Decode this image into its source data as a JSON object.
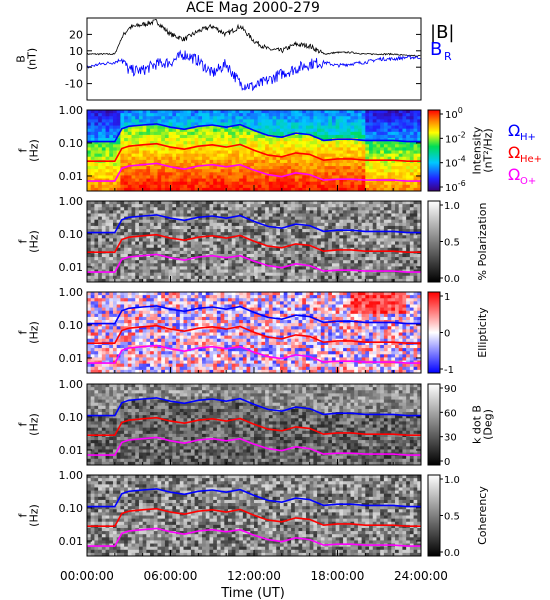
{
  "title": "ACE Mag 2000-279",
  "xlabel": "Time (UT)",
  "xticks": [
    "00:00:00",
    "06:00:00",
    "12:00:00",
    "18:00:00",
    "24:00:00"
  ],
  "colors": {
    "magnitude": "#000000",
    "radial": "#0000ff",
    "f_h": "#0000ff",
    "f_he": "#ff0000",
    "f_o": "#ff00ff"
  },
  "chart_data": [
    {
      "type": "line",
      "ylabel": "B\n(nT)",
      "xlim_hours": [
        0,
        24
      ],
      "ylim": [
        -20,
        30
      ],
      "yticks": [
        "20",
        "10",
        "0",
        "-10"
      ],
      "legend": [
        "|B|",
        "BR"
      ],
      "series": [
        {
          "name": "|B|",
          "x": [
            0,
            1,
            2,
            2.5,
            3,
            4,
            5,
            6,
            7,
            8,
            9,
            10,
            11,
            12,
            13,
            14,
            15,
            16,
            17,
            18,
            19,
            20,
            21,
            22,
            23,
            24
          ],
          "values": [
            8,
            8,
            8,
            18,
            24,
            26,
            28,
            20,
            17,
            22,
            25,
            20,
            25,
            16,
            11,
            10,
            14,
            13,
            8,
            9,
            9,
            8,
            8,
            8,
            7,
            7
          ]
        },
        {
          "name": "BR",
          "x": [
            0,
            1,
            2,
            2.5,
            3,
            4,
            5,
            6,
            7,
            8,
            9,
            10,
            11,
            12,
            13,
            14,
            15,
            16,
            17,
            18,
            19,
            20,
            21,
            22,
            23,
            24
          ],
          "values": [
            0,
            2,
            3,
            5,
            -2,
            -2,
            2,
            3,
            8,
            4,
            -4,
            2,
            -10,
            -12,
            -8,
            -4,
            -1,
            2,
            3,
            1,
            2,
            3,
            5,
            5,
            6,
            6
          ]
        }
      ]
    },
    {
      "type": "heatmap",
      "panel": "intensity",
      "ylabel": "f\n(Hz)",
      "yticks": [
        "1.00",
        "0.10",
        "0.01"
      ],
      "colorbar_label": "Intensity\n(nT²/Hz)",
      "colorbar_ticks": [
        "10^0",
        "10^-2",
        "10^-4",
        "10^-6"
      ],
      "colorscale": "rainbow",
      "gyrofreq_labels": [
        "ΩH+",
        "ΩHe+",
        "ΩO+"
      ],
      "gyrofrequency_hz": {
        "x": [
          0,
          1,
          2,
          2.5,
          3,
          4,
          5,
          6,
          7,
          8,
          9,
          10,
          11,
          12,
          13,
          14,
          15,
          16,
          17,
          18,
          19,
          20,
          21,
          22,
          23,
          24
        ],
        "H": [
          0.11,
          0.11,
          0.11,
          0.27,
          0.32,
          0.35,
          0.38,
          0.3,
          0.26,
          0.32,
          0.35,
          0.3,
          0.36,
          0.24,
          0.17,
          0.15,
          0.2,
          0.18,
          0.12,
          0.13,
          0.13,
          0.12,
          0.12,
          0.12,
          0.11,
          0.11
        ],
        "He": [
          0.028,
          0.028,
          0.028,
          0.068,
          0.08,
          0.088,
          0.095,
          0.075,
          0.065,
          0.08,
          0.088,
          0.075,
          0.09,
          0.06,
          0.043,
          0.038,
          0.05,
          0.045,
          0.03,
          0.033,
          0.033,
          0.03,
          0.03,
          0.03,
          0.028,
          0.028
        ],
        "O": [
          0.007,
          0.007,
          0.007,
          0.017,
          0.02,
          0.022,
          0.024,
          0.019,
          0.016,
          0.02,
          0.022,
          0.019,
          0.022,
          0.015,
          0.011,
          0.0095,
          0.0125,
          0.011,
          0.0075,
          0.008,
          0.008,
          0.0075,
          0.0075,
          0.0075,
          0.007,
          0.007
        ]
      }
    },
    {
      "type": "heatmap",
      "panel": "polarization",
      "ylabel": "f\n(Hz)",
      "yticks": [
        "1.00",
        "0.10",
        "0.01"
      ],
      "colorbar_label": "% Polarization",
      "colorbar_ticks": [
        "1.0",
        "0.5",
        "0.0"
      ],
      "colorscale": "gray"
    },
    {
      "type": "heatmap",
      "panel": "ellipticity",
      "ylabel": "f\n(Hz)",
      "yticks": [
        "1.00",
        "0.10",
        "0.01"
      ],
      "colorbar_label": "Ellipticity",
      "colorbar_ticks": [
        "1",
        "0",
        "-1"
      ],
      "colorscale": "bwr"
    },
    {
      "type": "heatmap",
      "panel": "kdotb",
      "ylabel": "f\n(Hz)",
      "yticks": [
        "1.00",
        "0.10",
        "0.01"
      ],
      "colorbar_label": "k dot B\n(Deg)",
      "colorbar_ticks": [
        "90",
        "60",
        "30",
        "0"
      ],
      "colorscale": "gray"
    },
    {
      "type": "heatmap",
      "panel": "coherency",
      "ylabel": "f\n(Hz)",
      "yticks": [
        "1.00",
        "0.10",
        "0.01"
      ],
      "colorbar_label": "Coherency",
      "colorbar_ticks": [
        "1.0",
        "0.5",
        "0.0"
      ],
      "colorscale": "gray"
    }
  ]
}
